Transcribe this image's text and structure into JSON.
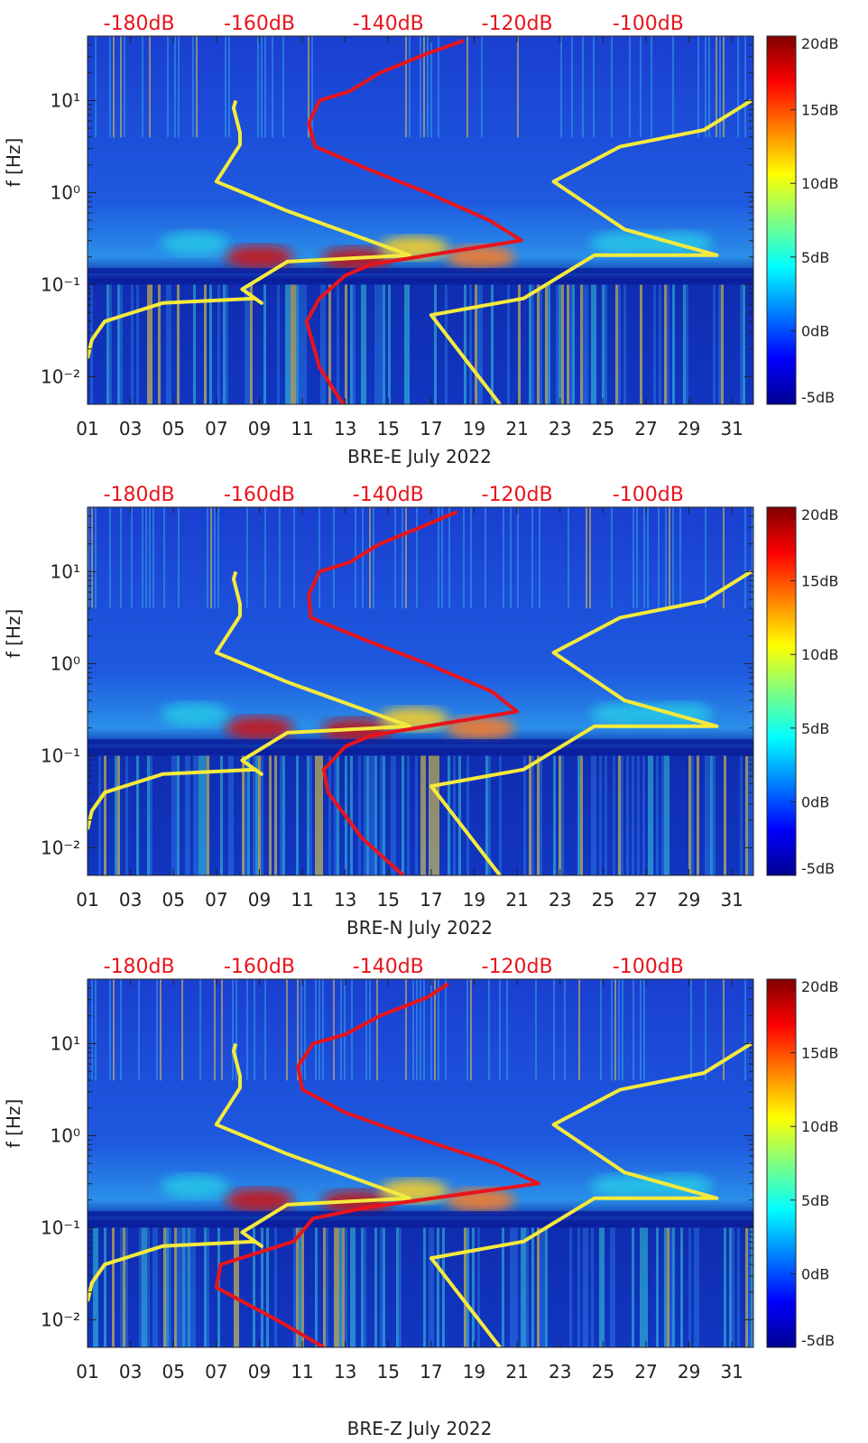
{
  "figure": {
    "colors": {
      "axis": "#222222",
      "yellow_line": "#f5ea3c",
      "red_line": "#e8141c",
      "top_label": "#e8141c",
      "background_deep": "#0a1f9e"
    }
  },
  "chart_data": [
    {
      "type": "heatmap",
      "title": "",
      "xlabel": "BRE-E July 2022",
      "ylabel": "f [Hz]",
      "x_tick_labels": [
        "01",
        "03",
        "05",
        "07",
        "09",
        "11",
        "13",
        "15",
        "17",
        "19",
        "21",
        "23",
        "25",
        "27",
        "29",
        "31"
      ],
      "x_ticks": [
        1,
        3,
        5,
        7,
        9,
        11,
        13,
        15,
        17,
        19,
        21,
        23,
        25,
        27,
        29,
        31
      ],
      "xlim": [
        1,
        32
      ],
      "ylim_log10": [
        -2.3,
        1.7
      ],
      "y_tick_labels": [
        "10⁻²",
        "10⁻¹",
        "10⁰",
        "10¹"
      ],
      "y_ticks_log10": [
        -2,
        -1,
        0,
        1
      ],
      "top_axis_labels": [
        "-180dB",
        "-160dB",
        "-140dB",
        "-120dB",
        "-100dB"
      ],
      "top_axis_positions_day": [
        3.4,
        9.0,
        15.0,
        21.0,
        27.1
      ],
      "colorbar": {
        "labels": [
          "20dB",
          "15dB",
          "10dB",
          "5dB",
          "0dB",
          "-5dB"
        ],
        "values": [
          20,
          15,
          10,
          5,
          0,
          -5
        ]
      },
      "series": [
        {
          "name": "yellow-low-noise-model",
          "color": "#f5ea3c",
          "points": [
            [
              1.0,
              -1.8
            ],
            [
              1.2,
              -1.6
            ],
            [
              1.8,
              -1.4
            ],
            [
              4.5,
              -1.2
            ],
            [
              8.8,
              -1.15
            ],
            [
              9.1,
              -1.2
            ],
            [
              8.2,
              -1.05
            ],
            [
              10.3,
              -0.75
            ],
            [
              16.0,
              -0.68
            ],
            [
              10.3,
              -0.2
            ],
            [
              7.0,
              0.12
            ],
            [
              8.1,
              0.52
            ],
            [
              8.1,
              0.65
            ],
            [
              7.8,
              0.92
            ],
            [
              7.9,
              1.0
            ]
          ]
        },
        {
          "name": "yellow-high-noise-model",
          "color": "#f5ea3c",
          "points": [
            [
              20.2,
              -2.3
            ],
            [
              17.0,
              -1.33
            ],
            [
              21.3,
              -1.15
            ],
            [
              24.6,
              -0.68
            ],
            [
              30.3,
              -0.68
            ],
            [
              26.0,
              -0.4
            ],
            [
              22.7,
              0.12
            ],
            [
              25.8,
              0.5
            ],
            [
              29.7,
              0.68
            ],
            [
              31.9,
              1.0
            ]
          ]
        },
        {
          "name": "red-median-psd",
          "color": "#e8141c",
          "points": [
            [
              12.9,
              -2.3
            ],
            [
              11.8,
              -1.9
            ],
            [
              11.2,
              -1.4
            ],
            [
              11.8,
              -1.15
            ],
            [
              13.0,
              -0.9
            ],
            [
              14.2,
              -0.78
            ],
            [
              21.2,
              -0.52
            ],
            [
              19.7,
              -0.3
            ],
            [
              16.8,
              0.0
            ],
            [
              14.1,
              0.25
            ],
            [
              11.6,
              0.5
            ],
            [
              11.3,
              0.75
            ],
            [
              11.8,
              1.0
            ],
            [
              13.2,
              1.1
            ],
            [
              14.6,
              1.3
            ],
            [
              16.7,
              1.5
            ],
            [
              18.5,
              1.65
            ]
          ]
        }
      ]
    },
    {
      "type": "heatmap",
      "title": "",
      "xlabel": "BRE-N July 2022",
      "ylabel": "f [Hz]",
      "x_tick_labels": [
        "01",
        "03",
        "05",
        "07",
        "09",
        "11",
        "13",
        "15",
        "17",
        "19",
        "21",
        "23",
        "25",
        "27",
        "29",
        "31"
      ],
      "x_ticks": [
        1,
        3,
        5,
        7,
        9,
        11,
        13,
        15,
        17,
        19,
        21,
        23,
        25,
        27,
        29,
        31
      ],
      "xlim": [
        1,
        32
      ],
      "ylim_log10": [
        -2.3,
        1.7
      ],
      "y_tick_labels": [
        "10⁻²",
        "10⁻¹",
        "10⁰",
        "10¹"
      ],
      "y_ticks_log10": [
        -2,
        -1,
        0,
        1
      ],
      "top_axis_labels": [
        "-180dB",
        "-160dB",
        "-140dB",
        "-120dB",
        "-100dB"
      ],
      "top_axis_positions_day": [
        3.4,
        9.0,
        15.0,
        21.0,
        27.1
      ],
      "colorbar": {
        "labels": [
          "20dB",
          "15dB",
          "10dB",
          "5dB",
          "0dB",
          "-5dB"
        ],
        "values": [
          20,
          15,
          10,
          5,
          0,
          -5
        ]
      },
      "series": [
        {
          "name": "yellow-low-noise-model",
          "color": "#f5ea3c",
          "points": [
            [
              1.0,
              -1.8
            ],
            [
              1.2,
              -1.6
            ],
            [
              1.8,
              -1.4
            ],
            [
              4.5,
              -1.2
            ],
            [
              8.8,
              -1.15
            ],
            [
              9.1,
              -1.2
            ],
            [
              8.2,
              -1.05
            ],
            [
              10.3,
              -0.75
            ],
            [
              16.0,
              -0.68
            ],
            [
              10.3,
              -0.2
            ],
            [
              7.0,
              0.12
            ],
            [
              8.1,
              0.52
            ],
            [
              8.1,
              0.65
            ],
            [
              7.8,
              0.92
            ],
            [
              7.9,
              1.0
            ]
          ]
        },
        {
          "name": "yellow-high-noise-model",
          "color": "#f5ea3c",
          "points": [
            [
              20.2,
              -2.3
            ],
            [
              17.0,
              -1.33
            ],
            [
              21.3,
              -1.15
            ],
            [
              24.6,
              -0.68
            ],
            [
              30.3,
              -0.68
            ],
            [
              26.0,
              -0.4
            ],
            [
              22.7,
              0.12
            ],
            [
              25.8,
              0.5
            ],
            [
              29.7,
              0.68
            ],
            [
              31.9,
              1.0
            ]
          ]
        },
        {
          "name": "red-median-psd",
          "color": "#e8141c",
          "points": [
            [
              15.7,
              -2.3
            ],
            [
              13.8,
              -1.9
            ],
            [
              12.2,
              -1.4
            ],
            [
              12.0,
              -1.15
            ],
            [
              13.0,
              -0.9
            ],
            [
              14.2,
              -0.78
            ],
            [
              21.0,
              -0.52
            ],
            [
              19.8,
              -0.3
            ],
            [
              16.8,
              0.0
            ],
            [
              14.0,
              0.25
            ],
            [
              11.4,
              0.5
            ],
            [
              11.3,
              0.75
            ],
            [
              11.8,
              1.0
            ],
            [
              13.2,
              1.1
            ],
            [
              14.6,
              1.3
            ],
            [
              16.7,
              1.5
            ],
            [
              18.2,
              1.65
            ]
          ]
        }
      ]
    },
    {
      "type": "heatmap",
      "title": "",
      "xlabel": "BRE-Z July 2022",
      "ylabel": "f [Hz]",
      "x_tick_labels": [
        "01",
        "03",
        "05",
        "07",
        "09",
        "11",
        "13",
        "15",
        "17",
        "19",
        "21",
        "23",
        "25",
        "27",
        "29",
        "31"
      ],
      "x_ticks": [
        1,
        3,
        5,
        7,
        9,
        11,
        13,
        15,
        17,
        19,
        21,
        23,
        25,
        27,
        29,
        31
      ],
      "xlim": [
        1,
        32
      ],
      "ylim_log10": [
        -2.3,
        1.7
      ],
      "y_tick_labels": [
        "10⁻²",
        "10⁻¹",
        "10⁰",
        "10¹"
      ],
      "y_ticks_log10": [
        -2,
        -1,
        0,
        1
      ],
      "top_axis_labels": [
        "-180dB",
        "-160dB",
        "-140dB",
        "-120dB",
        "-100dB"
      ],
      "top_axis_positions_day": [
        3.4,
        9.0,
        15.0,
        21.0,
        27.1
      ],
      "colorbar": {
        "labels": [
          "20dB",
          "15dB",
          "10dB",
          "5dB",
          "0dB",
          "-5dB"
        ],
        "values": [
          20,
          15,
          10,
          5,
          0,
          -5
        ]
      },
      "series": [
        {
          "name": "yellow-low-noise-model",
          "color": "#f5ea3c",
          "points": [
            [
              1.0,
              -1.8
            ],
            [
              1.2,
              -1.6
            ],
            [
              1.8,
              -1.4
            ],
            [
              4.5,
              -1.2
            ],
            [
              8.8,
              -1.15
            ],
            [
              9.1,
              -1.2
            ],
            [
              8.2,
              -1.05
            ],
            [
              10.3,
              -0.75
            ],
            [
              16.0,
              -0.68
            ],
            [
              10.3,
              -0.2
            ],
            [
              7.0,
              0.12
            ],
            [
              8.1,
              0.52
            ],
            [
              8.1,
              0.65
            ],
            [
              7.8,
              0.92
            ],
            [
              7.9,
              1.0
            ]
          ]
        },
        {
          "name": "yellow-high-noise-model",
          "color": "#f5ea3c",
          "points": [
            [
              20.2,
              -2.3
            ],
            [
              17.0,
              -1.33
            ],
            [
              21.3,
              -1.15
            ],
            [
              24.6,
              -0.68
            ],
            [
              30.3,
              -0.68
            ],
            [
              26.0,
              -0.4
            ],
            [
              22.7,
              0.12
            ],
            [
              25.8,
              0.5
            ],
            [
              29.7,
              0.68
            ],
            [
              31.9,
              1.0
            ]
          ]
        },
        {
          "name": "red-median-psd",
          "color": "#e8141c",
          "points": [
            [
              12.0,
              -2.3
            ],
            [
              9.8,
              -2.0
            ],
            [
              7.0,
              -1.65
            ],
            [
              7.2,
              -1.4
            ],
            [
              10.6,
              -1.15
            ],
            [
              11.5,
              -0.9
            ],
            [
              14.0,
              -0.78
            ],
            [
              22.0,
              -0.52
            ],
            [
              20.0,
              -0.3
            ],
            [
              16.0,
              0.0
            ],
            [
              13.0,
              0.25
            ],
            [
              11.0,
              0.5
            ],
            [
              10.8,
              0.75
            ],
            [
              11.5,
              1.0
            ],
            [
              13.0,
              1.1
            ],
            [
              14.6,
              1.3
            ],
            [
              16.8,
              1.5
            ],
            [
              17.8,
              1.65
            ]
          ]
        }
      ]
    }
  ]
}
